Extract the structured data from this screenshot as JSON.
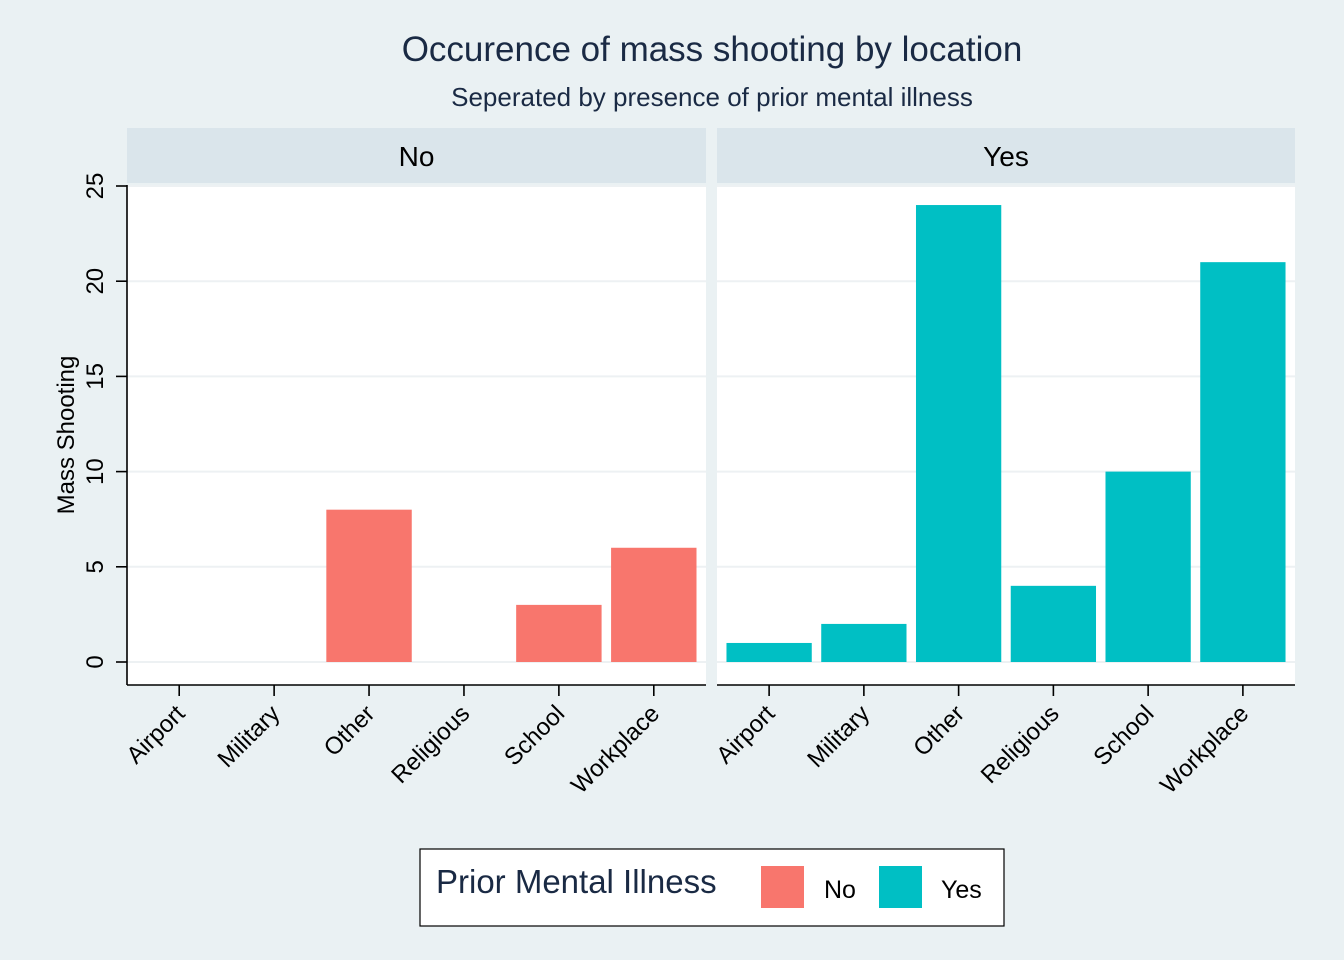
{
  "chart_data": {
    "type": "bar",
    "title": "Occurence of mass shooting by location",
    "subtitle": "Seperated by presence of prior mental illness",
    "xlabel": "",
    "ylabel": "Mass Shooting",
    "ylim": [
      0,
      25
    ],
    "yticks": [
      0,
      5,
      10,
      15,
      20,
      25
    ],
    "grid": true,
    "categories": [
      "Airport",
      "Military",
      "Other",
      "Religious",
      "School",
      "Workplace"
    ],
    "panels": [
      {
        "label": "No",
        "series": "No",
        "values": [
          0,
          0,
          8,
          0,
          3,
          6
        ]
      },
      {
        "label": "Yes",
        "series": "Yes",
        "values": [
          1,
          2,
          24,
          4,
          10,
          21
        ]
      }
    ],
    "legend": {
      "title": "Prior Mental Illness",
      "position": "bottom",
      "entries": [
        {
          "name": "No",
          "color": "#f8766d"
        },
        {
          "name": "Yes",
          "color": "#00bfc4"
        }
      ]
    },
    "colors": {
      "background": "#eaf1f3",
      "panel": "#ffffff",
      "strip": "#dae5eb",
      "grid": "#edf1f3",
      "text": "#1a2a44"
    }
  }
}
